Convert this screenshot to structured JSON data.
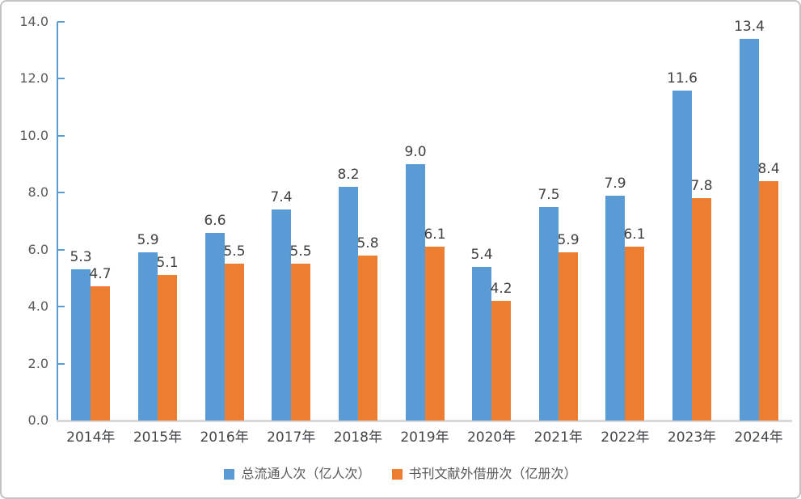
{
  "chart_data": {
    "type": "bar",
    "categories": [
      "2014年",
      "2015年",
      "2016年",
      "2017年",
      "2018年",
      "2019年",
      "2020年",
      "2021年",
      "2022年",
      "2023年",
      "2024年"
    ],
    "series": [
      {
        "name": "总流通人次（亿人次）",
        "color": "#5B9BD5",
        "values": [
          5.3,
          5.9,
          6.6,
          7.4,
          8.2,
          9.0,
          5.4,
          7.5,
          7.9,
          11.6,
          13.4
        ]
      },
      {
        "name": "书刊文献外借册次（亿册次）",
        "color": "#ED7D31",
        "values": [
          4.7,
          5.1,
          5.5,
          5.5,
          5.8,
          6.1,
          4.2,
          5.9,
          6.1,
          7.8,
          8.4
        ]
      }
    ],
    "title": "",
    "xlabel": "",
    "ylabel": "",
    "ylim": [
      0,
      14
    ],
    "ytick_step": 2,
    "yticks": [
      "0.0",
      "2.0",
      "4.0",
      "6.0",
      "8.0",
      "10.0",
      "12.0",
      "14.0"
    ],
    "grid": false,
    "legend_position": "bottom",
    "value_label_decimals": 1,
    "colors": {
      "axis": "#5B9BD5",
      "baseline": "#D9D9D9",
      "value_label": "#404040",
      "x_label": "#44464a",
      "y_tick_label": "#595959",
      "legend_label": "#595959",
      "background": "#ffffff",
      "frame_border": "#c3c3c3"
    }
  }
}
